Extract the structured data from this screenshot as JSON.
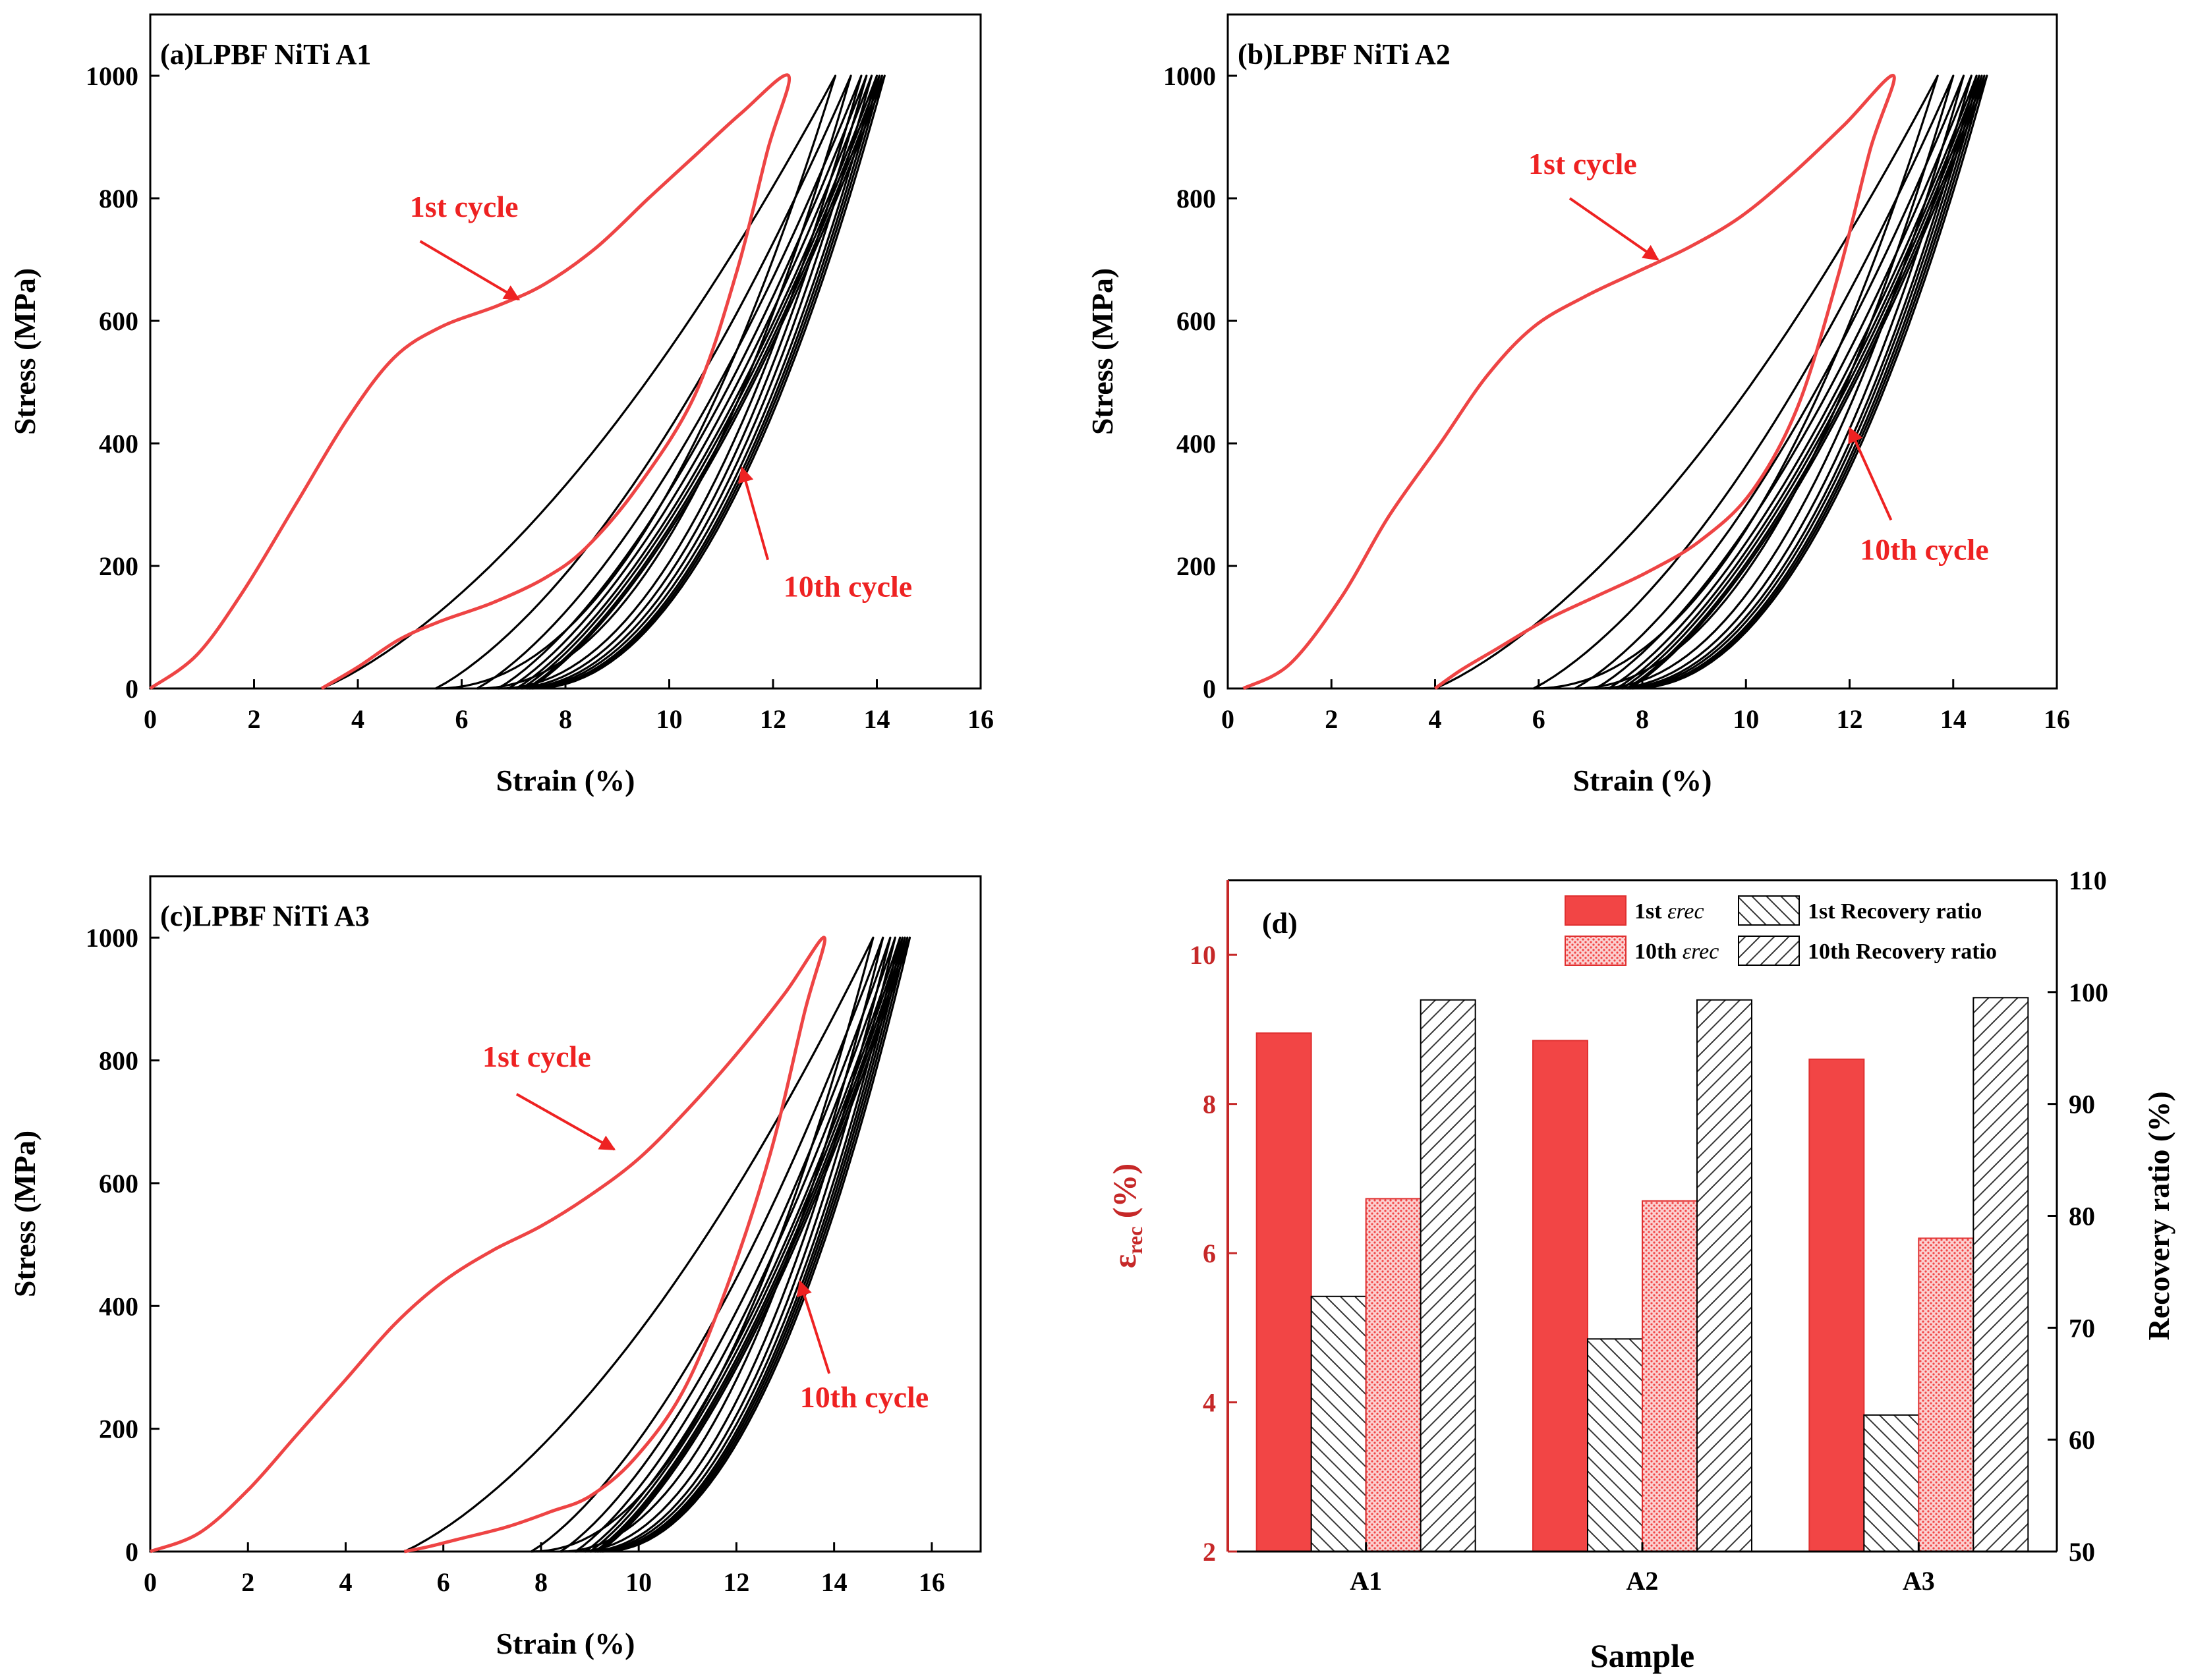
{
  "chart_data": [
    {
      "type": "line",
      "panel_label": "(a)LPBF NiTi A1",
      "xlabel": "Strain (%)",
      "ylabel": "Stress (MPa)",
      "xlim": [
        0,
        16
      ],
      "ylim": [
        0,
        1100
      ],
      "xticks": [
        "0",
        "2",
        "4",
        "6",
        "8",
        "10",
        "12",
        "14",
        "16"
      ],
      "yticks": [
        "0",
        "200",
        "400",
        "600",
        "800",
        "1000"
      ],
      "annotations": [
        {
          "text": "1st cycle",
          "color": "#ee2222",
          "text_pos": [
            5.0,
            770
          ],
          "arrow_from": [
            5.2,
            730
          ],
          "arrow_to": [
            7.1,
            635
          ]
        },
        {
          "text": "10th cycle",
          "color": "#ee2222",
          "text_pos": [
            12.2,
            150
          ],
          "arrow_from": [
            11.9,
            210
          ],
          "arrow_to": [
            11.4,
            360
          ]
        }
      ],
      "cycles": [
        {
          "name": "1st cycle",
          "color": "#ee4444",
          "start": 0.0,
          "peak": 12.3,
          "end": 3.3,
          "load": [
            [
              0,
              0
            ],
            [
              0.9,
              55
            ],
            [
              1.8,
              160
            ],
            [
              2.8,
              300
            ],
            [
              3.8,
              440
            ],
            [
              4.7,
              540
            ],
            [
              5.6,
              590
            ],
            [
              6.7,
              625
            ],
            [
              7.6,
              660
            ],
            [
              8.6,
              720
            ],
            [
              9.6,
              800
            ],
            [
              10.5,
              870
            ],
            [
              11.4,
              940
            ],
            [
              12.3,
              1000
            ]
          ],
          "unload": [
            [
              12.3,
              1000
            ],
            [
              11.9,
              880
            ],
            [
              11.3,
              680
            ],
            [
              10.5,
              480
            ],
            [
              9.4,
              330
            ],
            [
              8.4,
              230
            ],
            [
              7.6,
              180
            ],
            [
              6.6,
              140
            ],
            [
              5.6,
              110
            ],
            [
              4.8,
              80
            ],
            [
              4.0,
              35
            ],
            [
              3.3,
              0
            ]
          ]
        },
        {
          "name": "2nd cycle",
          "color": "#000000",
          "start": 3.3,
          "peak": 13.2,
          "end": 5.5
        },
        {
          "color": "#000000",
          "start": 5.5,
          "peak": 13.5,
          "end": 6.3
        },
        {
          "color": "#000000",
          "start": 6.3,
          "peak": 13.7,
          "end": 6.7
        },
        {
          "color": "#000000",
          "start": 6.7,
          "peak": 13.8,
          "end": 6.9
        },
        {
          "color": "#000000",
          "start": 6.9,
          "peak": 13.9,
          "end": 7.05
        },
        {
          "color": "#000000",
          "start": 7.05,
          "peak": 14.0,
          "end": 7.15
        },
        {
          "color": "#000000",
          "start": 7.15,
          "peak": 14.05,
          "end": 7.25
        },
        {
          "color": "#000000",
          "start": 7.25,
          "peak": 14.1,
          "end": 7.3
        },
        {
          "name": "10th cycle",
          "color": "#000000",
          "start": 7.3,
          "peak": 14.15,
          "end": 7.35
        }
      ]
    },
    {
      "type": "line",
      "panel_label": "(b)LPBF NiTi A2",
      "xlabel": "Strain (%)",
      "ylabel": "Stress (MPa)",
      "xlim": [
        0,
        16
      ],
      "ylim": [
        0,
        1100
      ],
      "xticks": [
        "0",
        "2",
        "4",
        "6",
        "8",
        "10",
        "12",
        "14",
        "16"
      ],
      "yticks": [
        "0",
        "200",
        "400",
        "600",
        "800",
        "1000"
      ],
      "annotations": [
        {
          "text": "1st cycle",
          "color": "#ee2222",
          "text_pos": [
            5.8,
            840
          ],
          "arrow_from": [
            6.6,
            800
          ],
          "arrow_to": [
            8.3,
            700
          ]
        },
        {
          "text": "10th cycle",
          "color": "#ee2222",
          "text_pos": [
            12.2,
            210
          ],
          "arrow_from": [
            12.8,
            275
          ],
          "arrow_to": [
            12.0,
            425
          ]
        }
      ],
      "cycles": [
        {
          "name": "1st cycle",
          "color": "#ee4444",
          "start": 0.3,
          "peak": 12.85,
          "end": 4.0,
          "load": [
            [
              0.3,
              0
            ],
            [
              1.2,
              40
            ],
            [
              2.2,
              150
            ],
            [
              3.1,
              280
            ],
            [
              4.1,
              400
            ],
            [
              5.0,
              510
            ],
            [
              5.9,
              590
            ],
            [
              6.9,
              640
            ],
            [
              7.9,
              680
            ],
            [
              8.9,
              720
            ],
            [
              9.9,
              770
            ],
            [
              10.9,
              840
            ],
            [
              11.9,
              920
            ],
            [
              12.85,
              1000
            ]
          ],
          "unload": [
            [
              12.85,
              1000
            ],
            [
              12.4,
              880
            ],
            [
              11.8,
              680
            ],
            [
              11.0,
              460
            ],
            [
              10.1,
              320
            ],
            [
              9.1,
              240
            ],
            [
              8.1,
              190
            ],
            [
              7.1,
              150
            ],
            [
              6.1,
              110
            ],
            [
              5.2,
              65
            ],
            [
              4.5,
              30
            ],
            [
              4.0,
              0
            ]
          ]
        },
        {
          "name": "2nd cycle",
          "color": "#000000",
          "start": 4.0,
          "peak": 13.7,
          "end": 5.9
        },
        {
          "color": "#000000",
          "start": 5.9,
          "peak": 14.0,
          "end": 6.7
        },
        {
          "color": "#000000",
          "start": 6.7,
          "peak": 14.2,
          "end": 7.1
        },
        {
          "color": "#000000",
          "start": 7.1,
          "peak": 14.35,
          "end": 7.35
        },
        {
          "color": "#000000",
          "start": 7.35,
          "peak": 14.45,
          "end": 7.5
        },
        {
          "color": "#000000",
          "start": 7.5,
          "peak": 14.5,
          "end": 7.6
        },
        {
          "color": "#000000",
          "start": 7.6,
          "peak": 14.55,
          "end": 7.7
        },
        {
          "color": "#000000",
          "start": 7.7,
          "peak": 14.6,
          "end": 7.75
        },
        {
          "name": "10th cycle",
          "color": "#000000",
          "start": 7.75,
          "peak": 14.65,
          "end": 7.8
        }
      ]
    },
    {
      "type": "line",
      "panel_label": "(c)LPBF NiTi A3",
      "xlabel": "Strain (%)",
      "ylabel": "Stress (MPa)",
      "xlim": [
        0,
        17
      ],
      "ylim": [
        0,
        1100
      ],
      "xticks": [
        "0",
        "2",
        "4",
        "6",
        "8",
        "10",
        "12",
        "14",
        "16"
      ],
      "yticks": [
        "0",
        "200",
        "400",
        "600",
        "800",
        "1000"
      ],
      "annotations": [
        {
          "text": "1st cycle",
          "color": "#ee2222",
          "text_pos": [
            6.8,
            790
          ],
          "arrow_from": [
            7.5,
            745
          ],
          "arrow_to": [
            9.5,
            655
          ]
        },
        {
          "text": "10th cycle",
          "color": "#ee2222",
          "text_pos": [
            13.3,
            235
          ],
          "arrow_from": [
            13.9,
            290
          ],
          "arrow_to": [
            13.3,
            440
          ]
        }
      ],
      "cycles": [
        {
          "name": "1st cycle",
          "color": "#ee4444",
          "start": 0.0,
          "peak": 13.8,
          "end": 5.2,
          "load": [
            [
              0,
              0
            ],
            [
              1.0,
              30
            ],
            [
              2.0,
              100
            ],
            [
              3.0,
              190
            ],
            [
              4.0,
              280
            ],
            [
              5.0,
              370
            ],
            [
              6.0,
              440
            ],
            [
              7.0,
              490
            ],
            [
              8.0,
              530
            ],
            [
              9.0,
              580
            ],
            [
              10.0,
              640
            ],
            [
              11.0,
              720
            ],
            [
              12.0,
              810
            ],
            [
              13.0,
              910
            ],
            [
              13.8,
              1000
            ]
          ],
          "unload": [
            [
              13.8,
              1000
            ],
            [
              13.4,
              880
            ],
            [
              12.7,
              650
            ],
            [
              11.8,
              430
            ],
            [
              10.9,
              260
            ],
            [
              9.9,
              150
            ],
            [
              9.0,
              90
            ],
            [
              8.2,
              65
            ],
            [
              7.3,
              40
            ],
            [
              6.3,
              20
            ],
            [
              5.7,
              8
            ],
            [
              5.2,
              0
            ]
          ]
        },
        {
          "name": "2nd cycle",
          "color": "#000000",
          "start": 5.2,
          "peak": 14.8,
          "end": 7.8
        },
        {
          "color": "#000000",
          "start": 7.8,
          "peak": 15.0,
          "end": 8.4
        },
        {
          "color": "#000000",
          "start": 8.4,
          "peak": 15.15,
          "end": 8.7
        },
        {
          "color": "#000000",
          "start": 8.7,
          "peak": 15.25,
          "end": 8.9
        },
        {
          "color": "#000000",
          "start": 8.9,
          "peak": 15.35,
          "end": 9.0
        },
        {
          "color": "#000000",
          "start": 9.0,
          "peak": 15.4,
          "end": 9.1
        },
        {
          "color": "#000000",
          "start": 9.1,
          "peak": 15.45,
          "end": 9.15
        },
        {
          "color": "#000000",
          "start": 9.15,
          "peak": 15.5,
          "end": 9.2
        },
        {
          "name": "10th cycle",
          "color": "#000000",
          "start": 9.2,
          "peak": 15.55,
          "end": 9.25
        }
      ]
    },
    {
      "type": "bar",
      "panel_label": "(d)",
      "categories": [
        "A1",
        "A2",
        "A3"
      ],
      "xlabel": "Sample",
      "ylabel_left": "εrec (%)",
      "ylabel_left_main": "ε",
      "ylabel_left_sub": "rec",
      "ylabel_left_unit": " (%)",
      "ylabel_right": "Recovery ratio (%)",
      "ylim_left": [
        2,
        11
      ],
      "ylim_right": [
        50,
        110
      ],
      "yticks_left": [
        "2",
        "4",
        "6",
        "8",
        "10"
      ],
      "yticks_right": [
        "50",
        "60",
        "70",
        "80",
        "90",
        "100",
        "110"
      ],
      "series": [
        {
          "name": "1st εrec",
          "legend_main": "1st ",
          "legend_sub": "εrec",
          "axis": "left",
          "fill": "solid",
          "color": "#f24545",
          "values": [
            8.95,
            8.85,
            8.6
          ]
        },
        {
          "name": "1st Recovery ratio",
          "axis": "right",
          "fill": "hatch-back",
          "color": "#000000",
          "values": [
            72.8,
            69.0,
            62.2
          ]
        },
        {
          "name": "10th εrec",
          "legend_main": "10th ",
          "legend_sub": "εrec",
          "axis": "left",
          "fill": "dots",
          "color": "#f24545",
          "values": [
            6.73,
            6.7,
            6.2
          ]
        },
        {
          "name": "10th Recovery ratio",
          "axis": "right",
          "fill": "hatch-fwd",
          "color": "#000000",
          "values": [
            99.3,
            99.3,
            99.5
          ]
        }
      ],
      "legend_labels": [
        "1st",
        "1st Recovery ratio",
        "10th",
        "10th Recovery ratio"
      ],
      "left_axis_color": "#c62828"
    }
  ]
}
